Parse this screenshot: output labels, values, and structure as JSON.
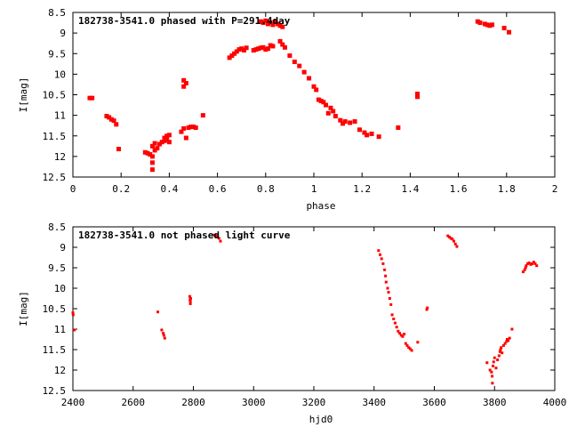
{
  "chart_data": [
    {
      "type": "scatter",
      "title": "182738-3541.0 phased with P=291.4day",
      "xlabel": "phase",
      "ylabel": "I[mag]",
      "xlim": [
        0,
        2
      ],
      "ylim": [
        12.5,
        8.5
      ],
      "y_inverted": true,
      "x_ticks": [
        "0",
        "0.2",
        "0.4",
        "0.6",
        "0.8",
        "1",
        "1.2",
        "1.4",
        "1.6",
        "1.8",
        "2"
      ],
      "y_ticks": [
        "8.5",
        "9",
        "9.5",
        "10",
        "10.5",
        "11",
        "11.5",
        "12",
        "12.5"
      ],
      "grid": false,
      "marker_color": "#ff0000",
      "series": [
        {
          "points": [
            [
              0.07,
              10.58
            ],
            [
              0.08,
              10.58
            ],
            [
              0.14,
              11.02
            ],
            [
              0.15,
              11.05
            ],
            [
              0.16,
              11.1
            ],
            [
              0.17,
              11.13
            ],
            [
              0.18,
              11.22
            ],
            [
              0.19,
              11.82
            ],
            [
              0.3,
              11.9
            ],
            [
              0.31,
              11.92
            ],
            [
              0.32,
              11.95
            ],
            [
              0.33,
              12.0
            ],
            [
              0.33,
              11.75
            ],
            [
              0.34,
              11.68
            ],
            [
              0.34,
              11.85
            ],
            [
              0.33,
              12.15
            ],
            [
              0.33,
              12.32
            ],
            [
              0.35,
              11.8
            ],
            [
              0.36,
              11.7
            ],
            [
              0.37,
              11.65
            ],
            [
              0.38,
              11.55
            ],
            [
              0.38,
              11.62
            ],
            [
              0.39,
              11.5
            ],
            [
              0.39,
              11.6
            ],
            [
              0.4,
              11.48
            ],
            [
              0.4,
              11.65
            ],
            [
              0.45,
              11.4
            ],
            [
              0.46,
              11.32
            ],
            [
              0.46,
              10.3
            ],
            [
              0.46,
              10.15
            ],
            [
              0.47,
              10.22
            ],
            [
              0.47,
              11.55
            ],
            [
              0.48,
              11.3
            ],
            [
              0.49,
              11.28
            ],
            [
              0.5,
              11.28
            ],
            [
              0.51,
              11.3
            ],
            [
              0.54,
              11.0
            ],
            [
              0.65,
              9.6
            ],
            [
              0.66,
              9.55
            ],
            [
              0.67,
              9.5
            ],
            [
              0.68,
              9.45
            ],
            [
              0.69,
              9.4
            ],
            [
              0.7,
              9.38
            ],
            [
              0.71,
              9.42
            ],
            [
              0.72,
              9.36
            ],
            [
              0.75,
              9.42
            ],
            [
              0.76,
              9.4
            ],
            [
              0.77,
              9.38
            ],
            [
              0.78,
              9.36
            ],
            [
              0.79,
              9.35
            ],
            [
              0.8,
              9.4
            ],
            [
              0.81,
              9.38
            ],
            [
              0.82,
              9.3
            ],
            [
              0.83,
              9.32
            ],
            [
              0.78,
              8.72
            ],
            [
              0.79,
              8.75
            ],
            [
              0.8,
              8.7
            ],
            [
              0.81,
              8.78
            ],
            [
              0.82,
              8.74
            ],
            [
              0.83,
              8.8
            ],
            [
              0.84,
              8.72
            ],
            [
              0.85,
              8.78
            ],
            [
              0.86,
              8.82
            ],
            [
              0.87,
              8.85
            ],
            [
              0.86,
              9.2
            ],
            [
              0.87,
              9.28
            ],
            [
              0.88,
              9.35
            ],
            [
              0.9,
              9.55
            ],
            [
              0.92,
              9.7
            ],
            [
              0.94,
              9.8
            ],
            [
              0.96,
              9.95
            ],
            [
              0.98,
              10.1
            ],
            [
              1.0,
              10.3
            ],
            [
              1.01,
              10.38
            ],
            [
              1.02,
              10.62
            ],
            [
              1.03,
              10.65
            ],
            [
              1.04,
              10.68
            ],
            [
              1.05,
              10.75
            ],
            [
              1.06,
              10.95
            ],
            [
              1.07,
              10.82
            ],
            [
              1.08,
              10.9
            ],
            [
              1.09,
              11.02
            ],
            [
              1.11,
              11.12
            ],
            [
              1.12,
              11.2
            ],
            [
              1.13,
              11.15
            ],
            [
              1.15,
              11.18
            ],
            [
              1.17,
              11.15
            ],
            [
              1.19,
              11.35
            ],
            [
              1.21,
              11.42
            ],
            [
              1.22,
              11.48
            ],
            [
              1.24,
              11.45
            ],
            [
              1.27,
              11.52
            ],
            [
              1.35,
              11.3
            ],
            [
              1.43,
              10.48
            ],
            [
              1.43,
              10.55
            ],
            [
              1.68,
              8.72
            ],
            [
              1.69,
              8.75
            ],
            [
              1.71,
              8.78
            ],
            [
              1.72,
              8.8
            ],
            [
              1.73,
              8.82
            ],
            [
              1.74,
              8.8
            ],
            [
              1.79,
              8.88
            ],
            [
              1.81,
              8.98
            ]
          ]
        }
      ]
    },
    {
      "type": "scatter",
      "title": "182738-3541.0 not phased light curve",
      "xlabel": "hjd0",
      "ylabel": "I[mag]",
      "xlim": [
        2400,
        4000
      ],
      "ylim": [
        12.5,
        8.5
      ],
      "y_inverted": true,
      "x_ticks": [
        "2400",
        "2600",
        "2800",
        "3000",
        "3200",
        "3400",
        "3600",
        "3800",
        "4000"
      ],
      "y_ticks": [
        "8.5",
        "9",
        "9.5",
        "10",
        "10.5",
        "11",
        "11.5",
        "12",
        "12.5"
      ],
      "grid": false,
      "marker_color": "#ff0000",
      "series": [
        {
          "points": [
            [
              2400,
              10.6
            ],
            [
              2401,
              10.65
            ],
            [
              2405,
              11.02
            ],
            [
              2682,
              10.58
            ],
            [
              2695,
              11.02
            ],
            [
              2700,
              11.1
            ],
            [
              2702,
              11.15
            ],
            [
              2705,
              11.22
            ],
            [
              2788,
              10.2
            ],
            [
              2789,
              10.28
            ],
            [
              2790,
              10.32
            ],
            [
              2790,
              10.38
            ],
            [
              2791,
              10.25
            ],
            [
              2870,
              8.7
            ],
            [
              2875,
              8.72
            ],
            [
              2880,
              8.75
            ],
            [
              2885,
              8.78
            ],
            [
              2890,
              8.85
            ],
            [
              3415,
              9.08
            ],
            [
              3420,
              9.18
            ],
            [
              3425,
              9.28
            ],
            [
              3430,
              9.4
            ],
            [
              3435,
              9.55
            ],
            [
              3438,
              9.7
            ],
            [
              3440,
              9.85
            ],
            [
              3445,
              10.0
            ],
            [
              3448,
              10.1
            ],
            [
              3452,
              10.25
            ],
            [
              3456,
              10.4
            ],
            [
              3460,
              10.65
            ],
            [
              3465,
              10.75
            ],
            [
              3470,
              10.85
            ],
            [
              3475,
              10.95
            ],
            [
              3480,
              11.05
            ],
            [
              3485,
              11.1
            ],
            [
              3490,
              11.15
            ],
            [
              3495,
              11.18
            ],
            [
              3500,
              11.12
            ],
            [
              3505,
              11.35
            ],
            [
              3510,
              11.4
            ],
            [
              3515,
              11.45
            ],
            [
              3520,
              11.48
            ],
            [
              3525,
              11.52
            ],
            [
              3545,
              11.32
            ],
            [
              3575,
              10.52
            ],
            [
              3577,
              10.48
            ],
            [
              3645,
              8.72
            ],
            [
              3650,
              8.75
            ],
            [
              3655,
              8.78
            ],
            [
              3660,
              8.8
            ],
            [
              3665,
              8.85
            ],
            [
              3670,
              8.92
            ],
            [
              3675,
              8.98
            ],
            [
              3775,
              11.82
            ],
            [
              3785,
              12.0
            ],
            [
              3790,
              12.05
            ],
            [
              3792,
              12.15
            ],
            [
              3793,
              12.32
            ],
            [
              3795,
              11.9
            ],
            [
              3797,
              11.8
            ],
            [
              3800,
              11.7
            ],
            [
              3805,
              11.95
            ],
            [
              3810,
              11.75
            ],
            [
              3815,
              11.65
            ],
            [
              3818,
              11.55
            ],
            [
              3820,
              11.5
            ],
            [
              3822,
              11.45
            ],
            [
              3825,
              11.58
            ],
            [
              3830,
              11.4
            ],
            [
              3835,
              11.35
            ],
            [
              3840,
              11.3
            ],
            [
              3842,
              11.25
            ],
            [
              3845,
              11.28
            ],
            [
              3850,
              11.22
            ],
            [
              3858,
              11.0
            ],
            [
              3895,
              9.6
            ],
            [
              3900,
              9.55
            ],
            [
              3903,
              9.5
            ],
            [
              3905,
              9.45
            ],
            [
              3910,
              9.4
            ],
            [
              3915,
              9.38
            ],
            [
              3920,
              9.42
            ],
            [
              3925,
              9.4
            ],
            [
              3930,
              9.36
            ],
            [
              3935,
              9.4
            ],
            [
              3940,
              9.45
            ]
          ]
        }
      ]
    }
  ]
}
